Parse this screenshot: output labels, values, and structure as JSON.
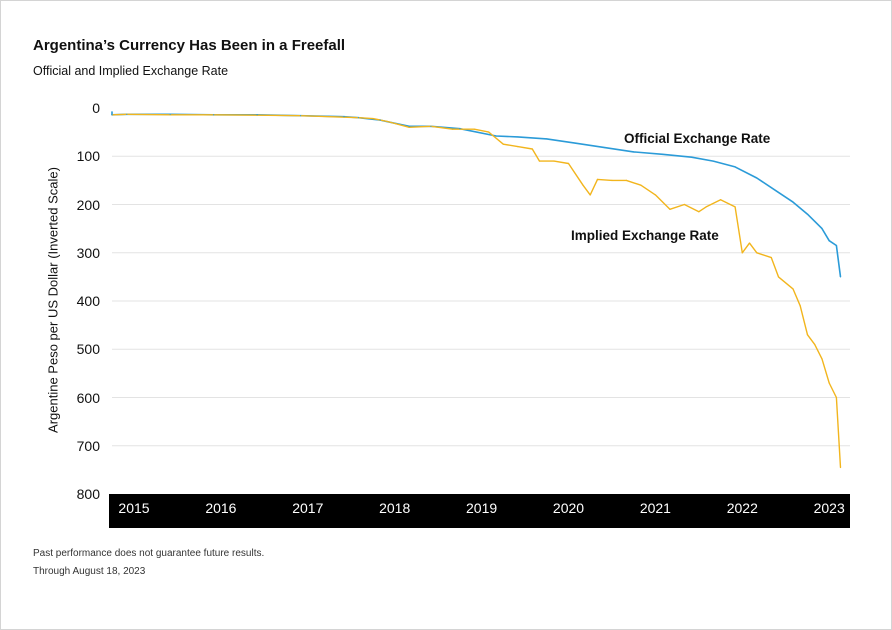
{
  "title": "Argentina’s Currency Has Been in a Freefall",
  "subtitle": "Official and Implied Exchange Rate",
  "footnote_1": "Past performance does not guarantee future results.",
  "footnote_2": "Through August 18, 2023",
  "colors": {
    "official": "#2b9bd8",
    "implied": "#f2b51d",
    "axis_band": "#000000",
    "grid": "#e3e3e3"
  },
  "chart_data": {
    "type": "line",
    "title": "Argentina’s Currency Has Been in a Freefall",
    "subtitle": "Official and Implied Exchange Rate",
    "ylabel": "Argentine Peso per US Dollar (Inverted Scale)",
    "xlabel": "",
    "y_inverted": true,
    "ylim": [
      0,
      800
    ],
    "yticks": [
      "0",
      "100",
      "200",
      "300",
      "400",
      "500",
      "600",
      "700",
      "800"
    ],
    "xticks": [
      "2015",
      "2016",
      "2017",
      "2018",
      "2019",
      "2020",
      "2021",
      "2022",
      "2023"
    ],
    "grid": true,
    "legend": "inline labels",
    "series": [
      {
        "name": "Official Exchange Rate",
        "label_position": "above line, 2021–2022",
        "points": [
          [
            "2014-01",
            8
          ],
          [
            "2014-03",
            8
          ],
          [
            "2014-04",
            13
          ],
          [
            "2014-08",
            14
          ],
          [
            "2015-01",
            14
          ],
          [
            "2015-06",
            13
          ],
          [
            "2015-12",
            13
          ],
          [
            "2016-06",
            14
          ],
          [
            "2016-12",
            14
          ],
          [
            "2017-06",
            16
          ],
          [
            "2017-12",
            18
          ],
          [
            "2018-02",
            20
          ],
          [
            "2018-05",
            25
          ],
          [
            "2018-09",
            38
          ],
          [
            "2018-12",
            38
          ],
          [
            "2019-04",
            43
          ],
          [
            "2019-09",
            58
          ],
          [
            "2019-12",
            60
          ],
          [
            "2020-04",
            64
          ],
          [
            "2020-08",
            73
          ],
          [
            "2020-12",
            82
          ],
          [
            "2021-04",
            91
          ],
          [
            "2021-08",
            96
          ],
          [
            "2021-12",
            102
          ],
          [
            "2022-03",
            110
          ],
          [
            "2022-06",
            122
          ],
          [
            "2022-09",
            145
          ],
          [
            "2022-12",
            175
          ],
          [
            "2023-02",
            195
          ],
          [
            "2023-04",
            220
          ],
          [
            "2023-06",
            250
          ],
          [
            "2023-07",
            275
          ],
          [
            "2023-08",
            285
          ],
          [
            "2023-08-18",
            350
          ]
        ]
      },
      {
        "name": "Implied Exchange Rate",
        "label_position": "below line, 2020–2021",
        "points": [
          [
            "2014-01",
            14
          ],
          [
            "2014-06",
            14
          ],
          [
            "2015-01",
            14
          ],
          [
            "2015-06",
            13
          ],
          [
            "2015-12",
            14
          ],
          [
            "2016-06",
            14
          ],
          [
            "2016-12",
            15
          ],
          [
            "2017-06",
            16
          ],
          [
            "2017-12",
            19
          ],
          [
            "2018-02",
            20
          ],
          [
            "2018-04",
            22
          ],
          [
            "2018-06",
            28
          ],
          [
            "2018-09",
            40
          ],
          [
            "2018-12",
            38
          ],
          [
            "2019-03",
            44
          ],
          [
            "2019-06",
            44
          ],
          [
            "2019-08",
            50
          ],
          [
            "2019-10",
            75
          ],
          [
            "2019-12",
            80
          ],
          [
            "2020-02",
            85
          ],
          [
            "2020-03",
            110
          ],
          [
            "2020-05",
            110
          ],
          [
            "2020-07",
            115
          ],
          [
            "2020-09",
            160
          ],
          [
            "2020-10",
            180
          ],
          [
            "2020-11",
            148
          ],
          [
            "2021-01",
            150
          ],
          [
            "2021-03",
            150
          ],
          [
            "2021-05",
            160
          ],
          [
            "2021-07",
            180
          ],
          [
            "2021-09",
            210
          ],
          [
            "2021-11",
            200
          ],
          [
            "2022-01",
            215
          ],
          [
            "2022-02",
            205
          ],
          [
            "2022-04",
            190
          ],
          [
            "2022-06",
            205
          ],
          [
            "2022-07",
            300
          ],
          [
            "2022-08",
            280
          ],
          [
            "2022-09",
            300
          ],
          [
            "2022-11",
            310
          ],
          [
            "2022-12",
            350
          ],
          [
            "2023-02",
            375
          ],
          [
            "2023-03",
            410
          ],
          [
            "2023-04",
            470
          ],
          [
            "2023-05",
            490
          ],
          [
            "2023-06",
            520
          ],
          [
            "2023-07",
            570
          ],
          [
            "2023-08",
            600
          ],
          [
            "2023-08-18",
            745
          ]
        ]
      }
    ]
  }
}
